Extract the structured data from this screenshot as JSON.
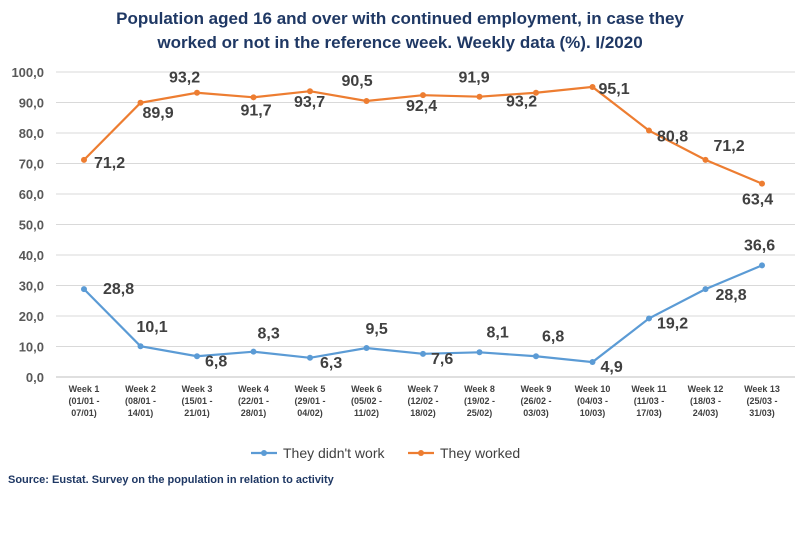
{
  "chart_data": {
    "type": "line",
    "title_line1": "Population aged 16 and over with continued employment, in case they",
    "title_line2": "worked or not in the reference week. Weekly data (%). I/2020",
    "categories": [
      [
        "Week 1",
        "(01/01 -",
        "07/01)"
      ],
      [
        "Week 2",
        "(08/01 -",
        "14/01)"
      ],
      [
        "Week 3",
        "(15/01 -",
        "21/01)"
      ],
      [
        "Week 4",
        "(22/01 -",
        "28/01)"
      ],
      [
        "Week 5",
        "(29/01 -",
        "04/02)"
      ],
      [
        "Week 6",
        "(05/02 -",
        "11/02)"
      ],
      [
        "Week 7",
        "(12/02 -",
        "18/02)"
      ],
      [
        "Week 8",
        "(19/02 -",
        "25/02)"
      ],
      [
        "Week 9",
        "(26/02 -",
        "03/03)"
      ],
      [
        "Week 10",
        "(04/03 -",
        "10/03)"
      ],
      [
        "Week 11",
        "(11/03 -",
        "17/03)"
      ],
      [
        "Week 12",
        "(18/03 -",
        "24/03)"
      ],
      [
        "Week 13",
        "(25/03 -",
        "31/03)"
      ]
    ],
    "series": [
      {
        "name": "They didn't work",
        "color": "#5b9bd5",
        "values": [
          28.8,
          10.1,
          6.8,
          8.3,
          6.3,
          9.5,
          7.6,
          8.1,
          6.8,
          4.9,
          19.2,
          28.8,
          36.6
        ],
        "labels": [
          "28,8",
          "10,1",
          "6,8",
          "8,3",
          "6,3",
          "9,5",
          "7,6",
          "8,1",
          "6,8",
          "4,9",
          "19,2",
          "28,8",
          "36,6"
        ]
      },
      {
        "name": "They worked",
        "color": "#ed7d31",
        "values": [
          71.2,
          89.9,
          93.2,
          91.7,
          93.7,
          90.5,
          92.4,
          91.9,
          93.2,
          95.1,
          80.8,
          71.2,
          63.4
        ],
        "labels": [
          "71,2",
          "89,9",
          "93,2",
          "91,7",
          "93,7",
          "90,5",
          "92,4",
          "91,9",
          "93,2",
          "95,1",
          "80,8",
          "71,2",
          "63,4"
        ]
      }
    ],
    "ylim": [
      0,
      100
    ],
    "yticks": [
      "0,0",
      "10,0",
      "20,0",
      "30,0",
      "40,0",
      "50,0",
      "60,0",
      "70,0",
      "80,0",
      "90,0",
      "100,0"
    ],
    "grid": true,
    "legend": "bottom",
    "source": "Source: Eustat. Survey on the population in relation to activity"
  }
}
